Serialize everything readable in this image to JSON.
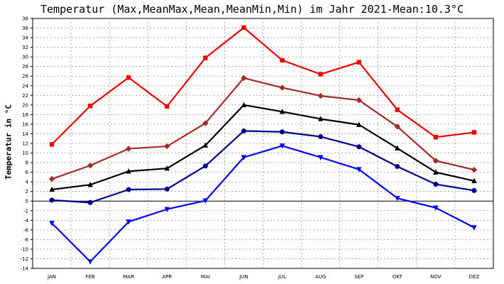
{
  "chart_data": {
    "type": "line",
    "title": "Temperatur (Max,MeanMax,Mean,MeanMin,Min) im Jahr 2021-Mean:10.3°C",
    "xlabel": "",
    "ylabel": "Temperatur in °C",
    "categories": [
      "JAN",
      "FEB",
      "MAR",
      "APR",
      "MAI",
      "JUN",
      "JUL",
      "AUG",
      "SEP",
      "OKT",
      "NOV",
      "DEZ"
    ],
    "ylim": [
      -14,
      38
    ],
    "yticks": [
      -14,
      -12,
      -10,
      -8,
      -6,
      -4,
      -2,
      0,
      2,
      4,
      6,
      8,
      10,
      12,
      14,
      16,
      18,
      20,
      22,
      24,
      26,
      28,
      30,
      32,
      34,
      36,
      38
    ],
    "grid": true,
    "series": [
      {
        "values": [
          11.8,
          19.8,
          25.7,
          19.7,
          29.8,
          36.1,
          29.3,
          26.4,
          28.9,
          19.0,
          13.3,
          14.3
        ],
        "color": "#ee0000",
        "marker": "square"
      },
      {
        "values": [
          4.6,
          7.4,
          10.9,
          11.4,
          16.2,
          25.6,
          23.6,
          21.9,
          21.0,
          15.5,
          8.4,
          6.5
        ],
        "color": "#a52a2a",
        "marker": "diamond"
      },
      {
        "values": [
          2.4,
          3.4,
          6.2,
          6.8,
          11.6,
          20.0,
          18.6,
          17.1,
          15.9,
          11.0,
          6.0,
          4.2
        ],
        "color": "#000000",
        "marker": "triangle-up"
      },
      {
        "values": [
          0.2,
          -0.3,
          2.4,
          2.5,
          7.3,
          14.6,
          14.4,
          13.4,
          11.3,
          7.2,
          3.5,
          2.2
        ],
        "color": "#00008b",
        "marker": "circle"
      },
      {
        "values": [
          -4.6,
          -12.6,
          -4.3,
          -1.7,
          0.1,
          9.1,
          11.5,
          9.1,
          6.6,
          0.6,
          -1.4,
          -5.5
        ],
        "color": "#0000ff",
        "marker": "triangle-down"
      }
    ]
  }
}
